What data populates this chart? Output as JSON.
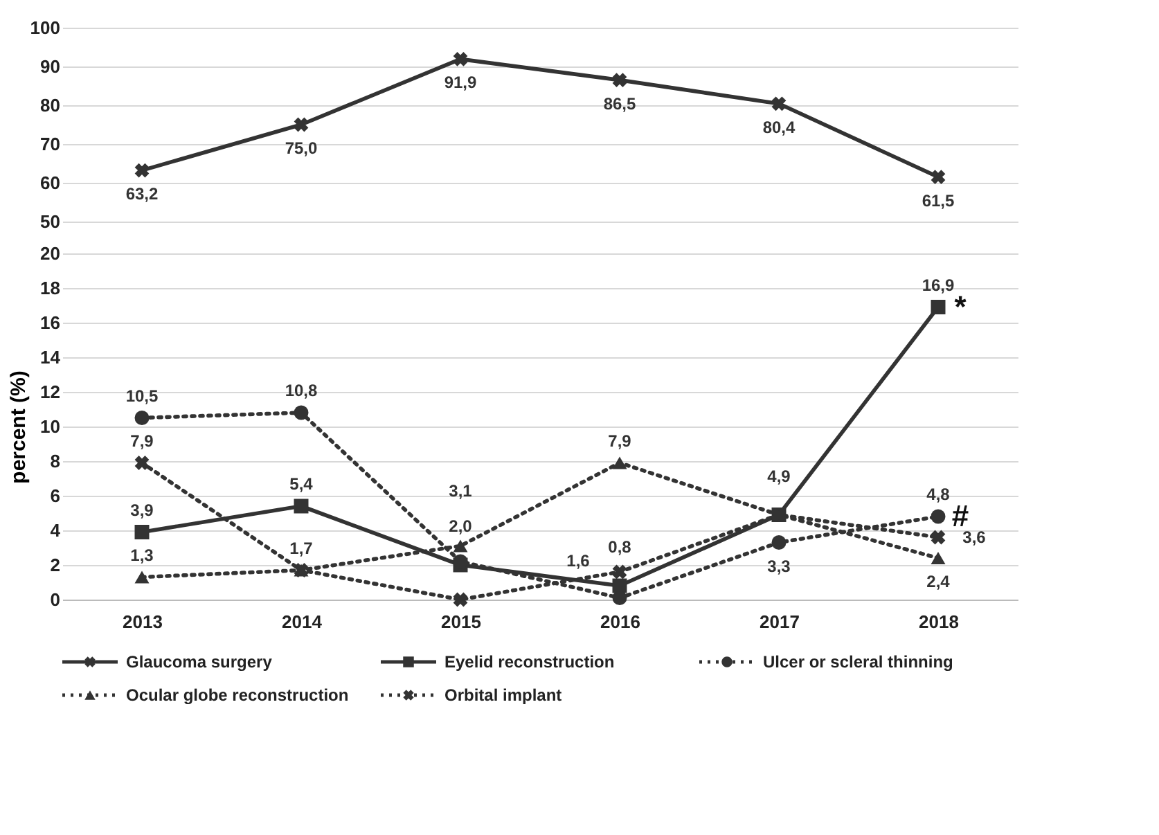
{
  "chart_data": [
    {
      "type": "line",
      "categories": [
        "2013",
        "2014",
        "2015",
        "2016",
        "2017",
        "2018"
      ],
      "ylim": [
        50,
        100
      ],
      "yticks": [
        50,
        60,
        70,
        80,
        90,
        100
      ],
      "tick_labels": "y",
      "grid": "y",
      "legend": "bottom",
      "series": [
        {
          "name": "Glaucoma surgery",
          "color": "#333333",
          "marker": "cross",
          "line_style": "solid",
          "values": [
            63.2,
            75.0,
            91.9,
            86.5,
            80.4,
            61.5
          ],
          "value_labels": [
            "63,2",
            "75,0",
            "91,9",
            "86,5",
            "80,4",
            "61,5"
          ]
        }
      ]
    },
    {
      "type": "line",
      "categories": [
        "2013",
        "2014",
        "2015",
        "2016",
        "2017",
        "2018"
      ],
      "ylim": [
        0,
        20
      ],
      "yticks": [
        0,
        2,
        4,
        6,
        8,
        10,
        12,
        14,
        16,
        18,
        20
      ],
      "ylabel": "percent (%)",
      "grid": "y",
      "legend": "bottom",
      "annotations": [
        {
          "text": "*",
          "x": "2018",
          "y": 16.9
        },
        {
          "text": "#",
          "x": "2018",
          "y": 4.8
        }
      ],
      "series": [
        {
          "name": "Eyelid reconstruction",
          "color": "#333333",
          "marker": "square",
          "line_style": "solid",
          "values": [
            3.9,
            5.4,
            2.0,
            0.8,
            4.9,
            16.9
          ],
          "value_labels": [
            "3,9",
            "5,4",
            "2,0",
            "0,8",
            "4,9",
            "16,9"
          ]
        },
        {
          "name": "Ulcer or scleral thinning",
          "color": "#333333",
          "marker": "circle",
          "line_style": "dotted",
          "values": [
            10.5,
            10.8,
            2.2,
            0.1,
            3.3,
            4.8
          ],
          "value_labels": [
            "10,5",
            "10,8",
            null,
            null,
            "3,3",
            "4,8"
          ]
        },
        {
          "name": "Ocular globe reconstruction",
          "color": "#333333",
          "marker": "triangle",
          "line_style": "dotted",
          "values": [
            1.3,
            1.7,
            3.1,
            7.9,
            4.9,
            2.4
          ],
          "value_labels": [
            "1,3",
            null,
            "3,1",
            "7,9",
            null,
            "2,4"
          ]
        },
        {
          "name": "Orbital implant",
          "color": "#333333",
          "marker": "cross",
          "line_style": "dotted",
          "values": [
            7.9,
            1.7,
            0.0,
            1.6,
            4.9,
            3.6
          ],
          "value_labels": [
            "7,9",
            "1,7",
            null,
            "1,6",
            null,
            "3,6"
          ]
        }
      ]
    }
  ]
}
